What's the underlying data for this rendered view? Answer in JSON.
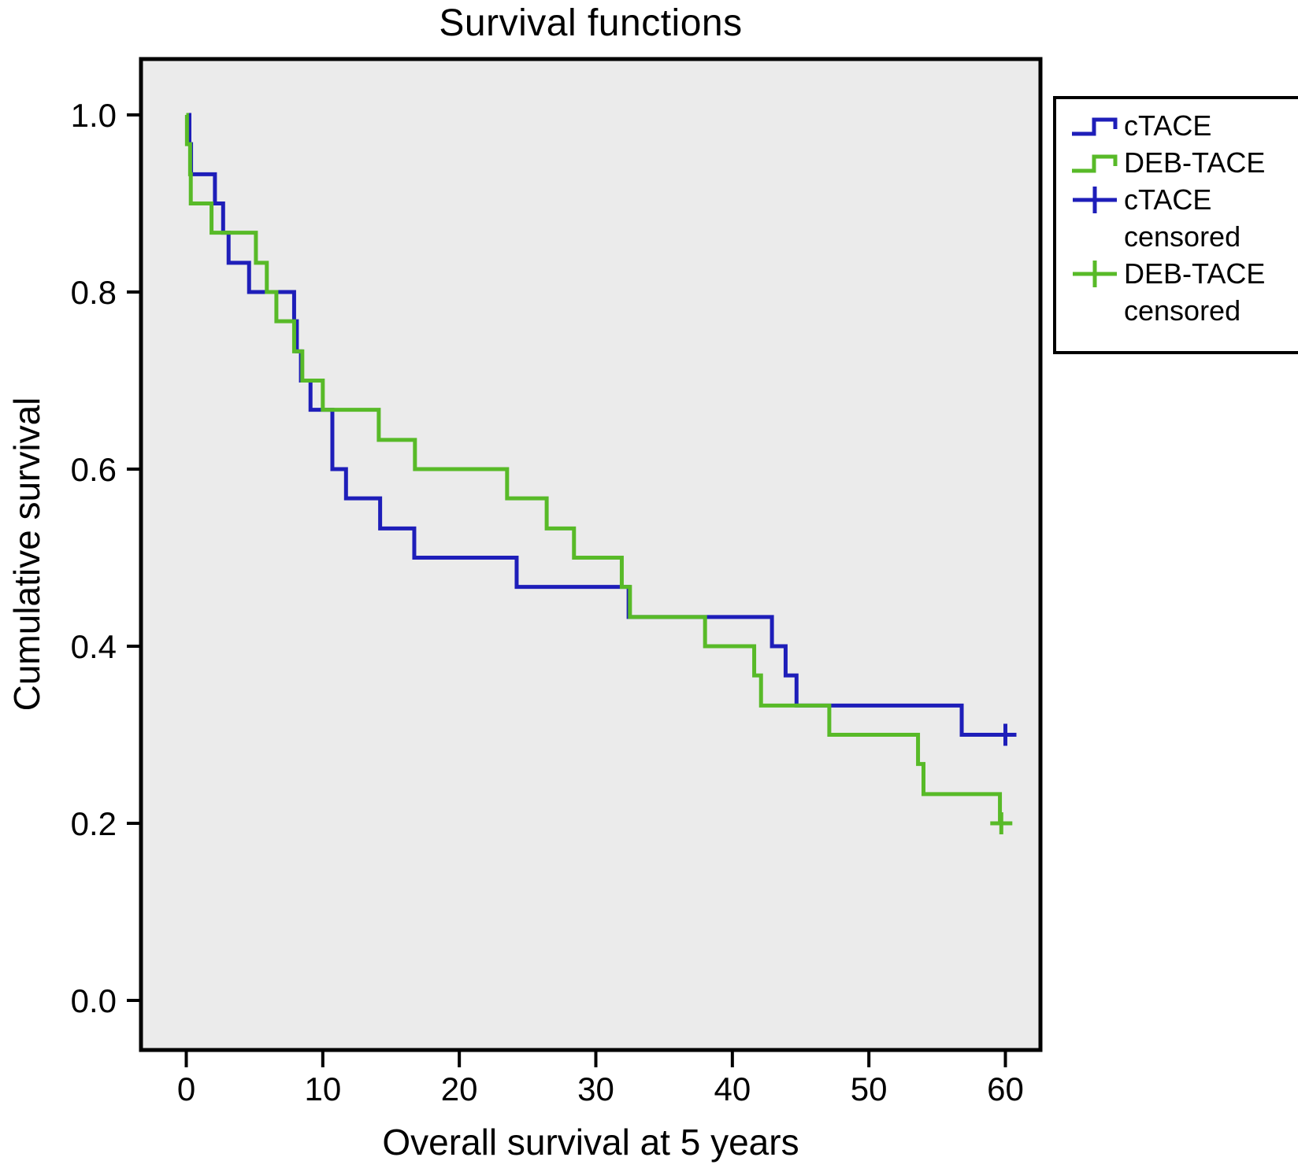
{
  "chart_data": {
    "type": "line",
    "variant": "kaplan_meier_step",
    "title": "Survival functions",
    "xlabel": "Overall survival at 5 years",
    "ylabel": "Cumulative survival",
    "grid": false,
    "plot_background": "#ebebeb",
    "frame_color": "#000000",
    "xlim": [
      -3.3,
      62.6
    ],
    "ylim": [
      -0.056,
      1.063
    ],
    "x_tick_values": [
      0,
      10,
      20,
      30,
      40,
      50,
      60
    ],
    "x_tick_labels": [
      "0",
      "10",
      "20",
      "30",
      "40",
      "50",
      "60"
    ],
    "y_tick_values": [
      1.0,
      0.8,
      0.6,
      0.4,
      0.2,
      0.0
    ],
    "y_tick_labels": [
      "1.0",
      "0.8",
      "0.6",
      "0.4",
      "0.2",
      "0.0"
    ],
    "legend_position": "outside_top_right",
    "series": [
      {
        "name": "cTACE",
        "color": "#1e1eb9",
        "points": [
          [
            0,
            1.0
          ],
          [
            0.23,
            0.967
          ],
          [
            0.35,
            0.933
          ],
          [
            2.1,
            0.9
          ],
          [
            2.7,
            0.867
          ],
          [
            3.1,
            0.833
          ],
          [
            4.6,
            0.8
          ],
          [
            7.9,
            0.767
          ],
          [
            8.1,
            0.733
          ],
          [
            8.4,
            0.7
          ],
          [
            9.1,
            0.667
          ],
          [
            10.7,
            0.6
          ],
          [
            11.7,
            0.567
          ],
          [
            14.2,
            0.533
          ],
          [
            16.7,
            0.5
          ],
          [
            24.2,
            0.467
          ],
          [
            32.4,
            0.433
          ],
          [
            42.9,
            0.4
          ],
          [
            43.9,
            0.367
          ],
          [
            44.7,
            0.333
          ],
          [
            56.8,
            0.3
          ]
        ],
        "line_end": 60.7,
        "censored": [
          [
            60.0,
            0.3
          ]
        ]
      },
      {
        "name": "DEB-TACE",
        "color": "#58ba28",
        "points": [
          [
            0,
            1.0
          ],
          [
            0.05,
            0.967
          ],
          [
            0.28,
            0.933
          ],
          [
            0.33,
            0.9
          ],
          [
            1.85,
            0.867
          ],
          [
            5.1,
            0.833
          ],
          [
            5.9,
            0.8
          ],
          [
            6.6,
            0.767
          ],
          [
            7.9,
            0.733
          ],
          [
            8.5,
            0.7
          ],
          [
            10.0,
            0.667
          ],
          [
            14.1,
            0.633
          ],
          [
            16.75,
            0.6
          ],
          [
            23.5,
            0.567
          ],
          [
            26.4,
            0.533
          ],
          [
            28.4,
            0.5
          ],
          [
            31.9,
            0.467
          ],
          [
            32.5,
            0.433
          ],
          [
            38.0,
            0.4
          ],
          [
            41.6,
            0.367
          ],
          [
            42.1,
            0.333
          ],
          [
            47.1,
            0.3
          ],
          [
            53.6,
            0.267
          ],
          [
            54.0,
            0.233
          ],
          [
            59.6,
            0.2
          ]
        ],
        "line_end": 60.2,
        "censored": [
          [
            59.7,
            0.2
          ]
        ]
      }
    ],
    "legend": {
      "items": [
        {
          "label": "cTACE",
          "sublabel": "",
          "marker": "step",
          "color": "#1e1eb9"
        },
        {
          "label": "DEB-TACE",
          "sublabel": "",
          "marker": "step",
          "color": "#58ba28"
        },
        {
          "label": "cTACE",
          "sublabel": "censored",
          "marker": "plus",
          "color": "#1e1eb9"
        },
        {
          "label": "DEB-TACE",
          "sublabel": "censored",
          "marker": "plus",
          "color": "#58ba28"
        }
      ]
    }
  }
}
